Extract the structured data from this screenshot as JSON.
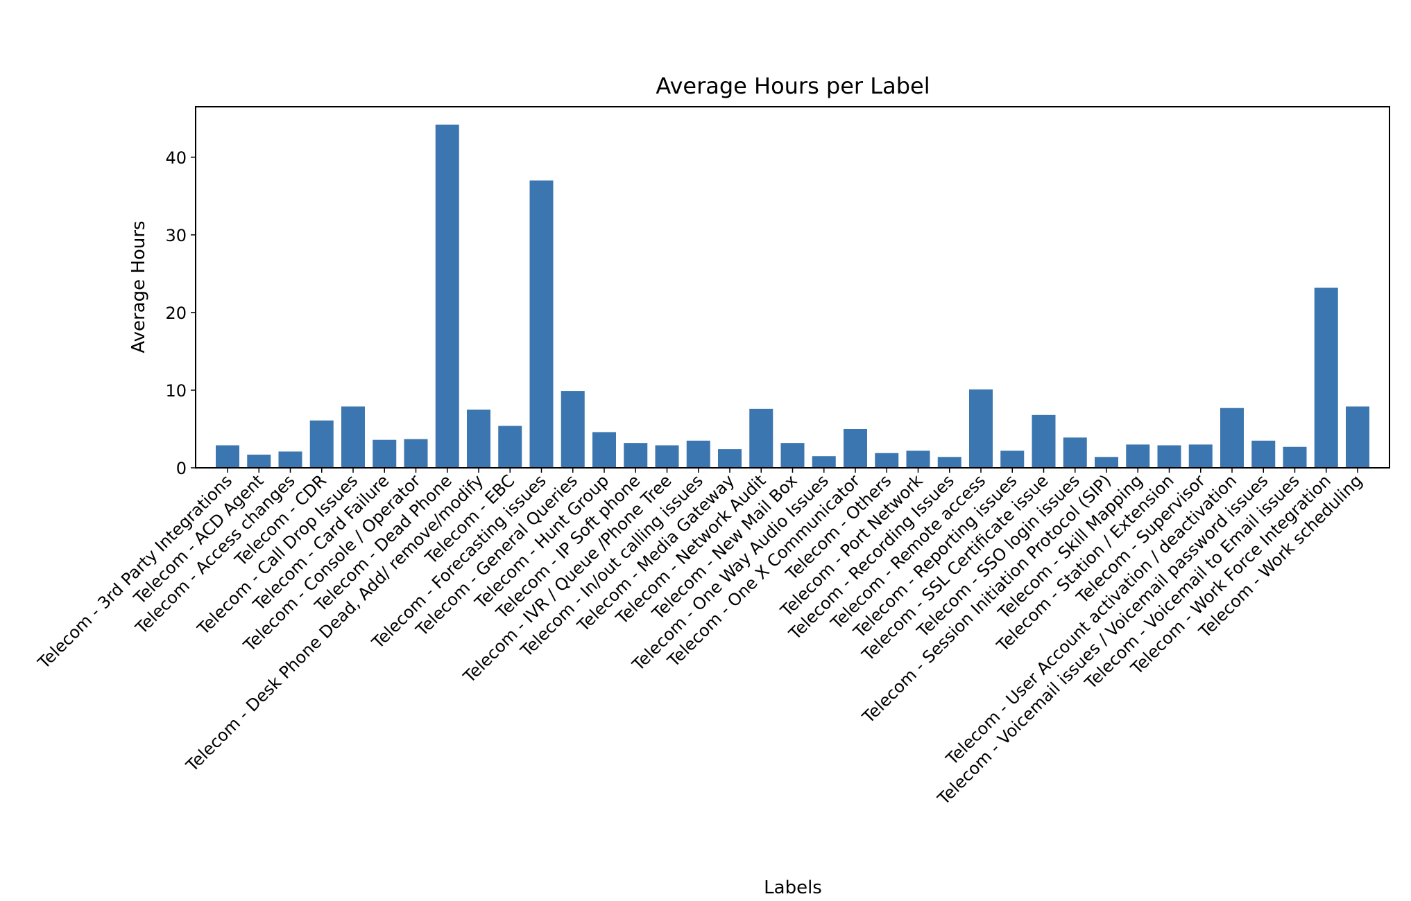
{
  "chart_data": {
    "type": "bar",
    "title": "Average Hours per Label",
    "xlabel": "Labels",
    "ylabel": "Average Hours",
    "ylim": [
      0,
      46.5
    ],
    "yticks": [
      0,
      10,
      20,
      30,
      40
    ],
    "grid": false,
    "bar_color": "#3b76b0",
    "categories": [
      "Telecom - 3rd Party Integrations",
      "Telecom - ACD Agent",
      "Telecom - Access changes",
      "Telecom - CDR",
      "Telecom - Call Drop Issues",
      "Telecom - Card Failure",
      "Telecom - Console / Operator",
      "Telecom - Dead Phone",
      "Telecom - Desk Phone Dead, Add/ remove/modify",
      "Telecom - EBC",
      "Telecom - Forecasting issues",
      "Telecom - General Queries",
      "Telecom - Hunt Group",
      "Telecom - IP Soft phone",
      "Telecom - IVR / Queue /Phone Tree",
      "Telecom - In/out calling issues",
      "Telecom - Media Gateway",
      "Telecom - Network Audit",
      "Telecom - New Mail Box",
      "Telecom - One Way Audio Issues",
      "Telecom - One X Communicator",
      "Telecom - Others",
      "Telecom - Port Network",
      "Telecom - Recording Issues",
      "Telecom - Remote access",
      "Telecom - Reporting issues",
      "Telecom - SSL Certificate issue",
      "Telecom - SSO login issues",
      "Telecom - Session Initiation Protocol (SIP)",
      "Telecom - Skill Mapping",
      "Telecom - Station / Extension",
      "Telecom - Supervisor",
      "Telecom - User Account activation / deactivation",
      "Telecom - Voicemail issues / Voicemail password issues",
      "Telecom - Voicemail to Email issues",
      "Telecom - Work Force Integration",
      "Telecom - Work scheduling"
    ],
    "values": [
      2.9,
      1.7,
      2.1,
      6.1,
      7.9,
      3.6,
      3.7,
      44.2,
      7.5,
      5.4,
      37.0,
      9.9,
      4.6,
      3.2,
      2.9,
      3.5,
      2.4,
      7.6,
      3.2,
      1.5,
      5.0,
      1.9,
      2.2,
      1.4,
      10.1,
      2.2,
      6.8,
      3.9,
      1.4,
      3.0,
      2.9,
      3.0,
      7.7,
      3.5,
      2.7,
      23.2,
      7.9
    ]
  }
}
